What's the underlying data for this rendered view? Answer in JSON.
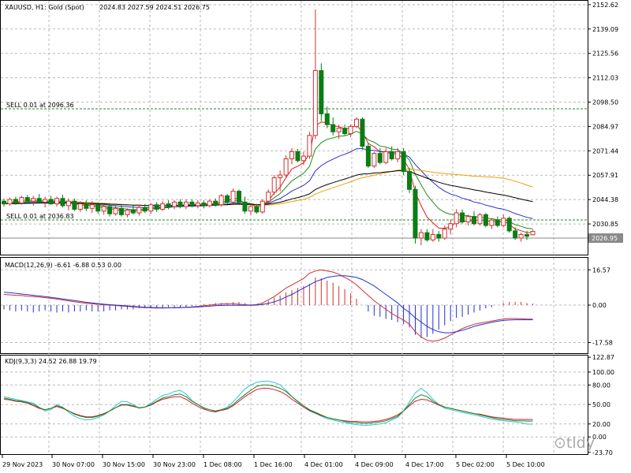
{
  "header": {
    "symbol": "XAUUSD, H1:  Gold (Spot)",
    "ohlc": "2024.83 2027.59 2024.51 2026.75"
  },
  "trade_lines": {
    "upper": "SELL 0.01 at 2096.36",
    "lower": "SELL 0.01 at 2036.83"
  },
  "current_price": "2026.95",
  "watermark": "⊙tldy",
  "colors": {
    "bull": "#d32f2f",
    "bear": "#0a7d14",
    "grid": "#b9b9b9",
    "ma_red": "#e02020",
    "ma_green": "#1d8f1d",
    "ma_blue": "#2a2fcc",
    "ma_orange": "#f0a000",
    "ma_black": "#000000",
    "macd_hist_pos": "#d32f2f",
    "macd_hist_neg": "#2030d0",
    "kdj_k": "#1a8a1a",
    "kdj_d": "#d81b3c",
    "kdj_j": "#2ec4d8",
    "trade_line": "#1f8a1f",
    "price_line": "#8a8a8a"
  },
  "chart_data": [
    {
      "type": "candlestick",
      "title": "XAUUSD, H1:  Gold (Spot)",
      "y_ticks": [
        "2152.62",
        "2139.09",
        "2125.56",
        "2112.03",
        "2098.50",
        "2084.97",
        "2071.44",
        "2057.91",
        "2044.38",
        "2030.85"
      ],
      "ylim": [
        2016,
        2153
      ],
      "candles": [
        [
          2043.5,
          2045.0,
          2040.5,
          2042.0
        ],
        [
          2042.0,
          2045.5,
          2041.0,
          2044.5
        ],
        [
          2044.5,
          2046.0,
          2041.5,
          2042.5
        ],
        [
          2042.5,
          2046.5,
          2041.5,
          2045.5
        ],
        [
          2045.5,
          2047.0,
          2042.0,
          2043.5
        ],
        [
          2043.5,
          2046.5,
          2041.0,
          2045.0
        ],
        [
          2045.0,
          2047.5,
          2042.5,
          2043.0
        ],
        [
          2043.0,
          2046.0,
          2040.0,
          2044.5
        ],
        [
          2044.5,
          2046.5,
          2041.5,
          2042.0
        ],
        [
          2042.0,
          2046.0,
          2040.5,
          2045.0
        ],
        [
          2045.0,
          2047.0,
          2040.0,
          2041.0
        ],
        [
          2041.0,
          2045.0,
          2038.5,
          2043.5
        ],
        [
          2043.5,
          2045.0,
          2038.0,
          2039.0
        ],
        [
          2039.0,
          2043.5,
          2037.5,
          2042.0
        ],
        [
          2042.0,
          2044.0,
          2038.0,
          2039.5
        ],
        [
          2039.5,
          2043.5,
          2037.0,
          2041.5
        ],
        [
          2041.5,
          2043.0,
          2036.5,
          2038.0
        ],
        [
          2038.0,
          2042.0,
          2036.0,
          2040.5
        ],
        [
          2040.5,
          2042.5,
          2035.0,
          2036.5
        ],
        [
          2036.5,
          2041.0,
          2035.5,
          2039.5
        ],
        [
          2039.5,
          2042.0,
          2035.0,
          2036.0
        ],
        [
          2036.0,
          2039.5,
          2034.5,
          2038.5
        ],
        [
          2038.5,
          2041.0,
          2036.0,
          2037.0
        ],
        [
          2037.0,
          2041.5,
          2035.5,
          2040.0
        ],
        [
          2040.0,
          2042.0,
          2037.0,
          2038.0
        ],
        [
          2038.0,
          2042.5,
          2036.5,
          2041.5
        ],
        [
          2041.5,
          2043.0,
          2037.5,
          2039.0
        ],
        [
          2039.0,
          2043.5,
          2038.0,
          2042.0
        ],
        [
          2042.0,
          2044.0,
          2039.0,
          2040.5
        ],
        [
          2040.5,
          2044.0,
          2039.0,
          2043.0
        ],
        [
          2043.0,
          2044.5,
          2039.5,
          2040.5
        ],
        [
          2040.5,
          2044.5,
          2039.0,
          2043.0
        ],
        [
          2043.0,
          2044.5,
          2040.0,
          2041.0
        ],
        [
          2041.0,
          2044.0,
          2039.5,
          2042.5
        ],
        [
          2042.5,
          2044.0,
          2039.5,
          2041.0
        ],
        [
          2041.0,
          2044.5,
          2040.0,
          2043.5
        ],
        [
          2043.5,
          2045.0,
          2040.5,
          2041.5
        ],
        [
          2041.5,
          2047.5,
          2040.5,
          2046.5
        ],
        [
          2046.5,
          2047.5,
          2042.0,
          2043.0
        ],
        [
          2043.0,
          2050.5,
          2042.0,
          2049.0
        ],
        [
          2049.0,
          2050.0,
          2042.0,
          2043.0
        ],
        [
          2043.0,
          2046.0,
          2036.5,
          2038.0
        ],
        [
          2038.0,
          2042.0,
          2036.0,
          2040.5
        ],
        [
          2040.5,
          2042.0,
          2036.5,
          2037.5
        ],
        [
          2037.5,
          2044.5,
          2036.5,
          2043.5
        ],
        [
          2043.5,
          2050.0,
          2042.5,
          2048.5
        ],
        [
          2048.5,
          2058.0,
          2047.0,
          2056.5
        ],
        [
          2056.5,
          2060.5,
          2049.0,
          2058.0
        ],
        [
          2058.0,
          2069.0,
          2056.5,
          2067.0
        ],
        [
          2067.0,
          2073.0,
          2064.0,
          2071.0
        ],
        [
          2071.0,
          2072.5,
          2065.0,
          2066.0
        ],
        [
          2066.0,
          2071.0,
          2063.5,
          2068.5
        ],
        [
          2068.5,
          2082.0,
          2067.0,
          2080.0
        ],
        [
          2080.0,
          2150.0,
          2078.0,
          2116.0
        ],
        [
          2116.0,
          2120.0,
          2088.0,
          2092.0
        ],
        [
          2092.0,
          2096.0,
          2084.0,
          2086.0
        ],
        [
          2086.0,
          2090.0,
          2080.0,
          2082.0
        ],
        [
          2082.0,
          2086.0,
          2078.0,
          2084.0
        ],
        [
          2084.0,
          2086.0,
          2080.0,
          2081.0
        ],
        [
          2081.0,
          2086.0,
          2079.0,
          2085.0
        ],
        [
          2085.0,
          2090.0,
          2084.0,
          2089.0
        ],
        [
          2089.0,
          2090.0,
          2072.0,
          2074.0
        ],
        [
          2074.0,
          2076.0,
          2062.0,
          2063.0
        ],
        [
          2063.0,
          2071.0,
          2062.0,
          2070.0
        ],
        [
          2070.0,
          2073.0,
          2064.0,
          2065.0
        ],
        [
          2065.0,
          2073.0,
          2064.0,
          2071.0
        ],
        [
          2071.0,
          2074.0,
          2066.0,
          2067.0
        ],
        [
          2067.0,
          2073.0,
          2065.0,
          2071.0
        ],
        [
          2071.0,
          2073.0,
          2058.0,
          2060.0
        ],
        [
          2060.0,
          2062.0,
          2048.0,
          2050.0
        ],
        [
          2050.0,
          2052.0,
          2020.0,
          2023.0
        ],
        [
          2023.0,
          2028.0,
          2019.0,
          2026.0
        ],
        [
          2026.0,
          2028.0,
          2021.0,
          2022.0
        ],
        [
          2022.0,
          2028.0,
          2021.0,
          2025.0
        ],
        [
          2025.0,
          2027.0,
          2021.0,
          2023.0
        ],
        [
          2023.0,
          2030.0,
          2022.0,
          2028.0
        ],
        [
          2028.0,
          2033.0,
          2025.0,
          2031.0
        ],
        [
          2031.0,
          2039.0,
          2029.0,
          2037.0
        ],
        [
          2037.0,
          2039.0,
          2031.0,
          2032.0
        ],
        [
          2032.0,
          2036.0,
          2030.0,
          2035.0
        ],
        [
          2035.0,
          2038.0,
          2030.0,
          2031.0
        ],
        [
          2031.0,
          2037.0,
          2030.0,
          2036.0
        ],
        [
          2036.0,
          2037.0,
          2029.0,
          2030.0
        ],
        [
          2030.0,
          2034.0,
          2028.0,
          2033.0
        ],
        [
          2033.0,
          2035.0,
          2029.0,
          2030.0
        ],
        [
          2030.0,
          2036.0,
          2029.0,
          2034.0
        ],
        [
          2034.0,
          2035.0,
          2026.0,
          2027.0
        ],
        [
          2027.0,
          2029.0,
          2022.0,
          2023.0
        ],
        [
          2023.0,
          2026.0,
          2021.0,
          2025.0
        ],
        [
          2025.0,
          2027.0,
          2022.0,
          2024.0
        ],
        [
          2024.83,
          2027.59,
          2024.51,
          2026.75
        ]
      ]
    },
    {
      "type": "line",
      "title": "MACD(12,26,9) -6.61 -6.88 0.53 0.00",
      "y_ticks": [
        "16.57",
        "0.00",
        "-17.58"
      ],
      "ylim": [
        -20,
        20
      ],
      "histogram": [
        -2,
        -2.5,
        -3,
        -2.5,
        -3,
        -3.5,
        -3,
        -2.5,
        -3,
        -3.5,
        -3,
        -3.5,
        -3,
        -3,
        -2.5,
        -3,
        -3,
        -3,
        -2.5,
        -2.5,
        -2,
        -2,
        -2,
        -1.5,
        -1.5,
        -1.5,
        -1.5,
        -1.5,
        -1,
        -1,
        -1,
        -1,
        -0.5,
        0,
        0.5,
        0.5,
        1,
        1,
        1,
        1.5,
        1.5,
        1,
        0.5,
        0.5,
        1,
        2,
        3.5,
        4.5,
        6,
        7,
        8,
        9,
        10,
        13,
        12.5,
        11.5,
        10.5,
        9,
        7.5,
        5.5,
        3,
        0,
        -3,
        -5,
        -5.5,
        -6.5,
        -7,
        -8,
        -9,
        -10.5,
        -14,
        -15.5,
        -15,
        -13.5,
        -11.5,
        -9.5,
        -7.5,
        -6,
        -5.5,
        -4.5,
        -3.5,
        -2.5,
        -1.5,
        -1,
        0,
        1,
        1.5,
        1.5,
        1.5,
        1,
        0.7
      ],
      "macd": [
        5,
        4.8,
        4.6,
        4.5,
        4.2,
        4,
        3.8,
        3.5,
        3.2,
        2.8,
        2.4,
        2,
        1.6,
        1.2,
        0.9,
        0.6,
        0.4,
        0.2,
        0,
        -0.2,
        -0.4,
        -0.6,
        -0.8,
        -1,
        -1.2,
        -1.3,
        -1.4,
        -1.4,
        -1.3,
        -1.2,
        -1.1,
        -1,
        -0.9,
        -0.6,
        -0.3,
        0,
        0.3,
        0.5,
        0.6,
        0.6,
        0.4,
        0.2,
        0,
        0.3,
        1,
        2.5,
        4,
        6,
        8,
        9.5,
        11,
        12.5,
        15,
        16,
        16.5,
        16,
        15.5,
        14.5,
        13,
        11.5,
        9.5,
        7,
        4.5,
        2,
        0,
        -2,
        -4,
        -5.5,
        -7,
        -9,
        -12.5,
        -15,
        -16.5,
        -17,
        -16.5,
        -15.5,
        -14,
        -12.5,
        -11,
        -10,
        -9,
        -8.5,
        -8,
        -7.5,
        -7,
        -6.5,
        -6.3,
        -6.3,
        -6.4,
        -6.6,
        -6.61
      ],
      "signal": [
        6,
        5.8,
        5.5,
        5.2,
        4.9,
        4.6,
        4.3,
        4,
        3.6,
        3.3,
        2.9,
        2.5,
        2.1,
        1.7,
        1.3,
        1,
        0.7,
        0.4,
        0.2,
        0,
        -0.2,
        -0.4,
        -0.6,
        -0.8,
        -1,
        -1.1,
        -1.2,
        -1.3,
        -1.3,
        -1.3,
        -1.2,
        -1.1,
        -1,
        -0.9,
        -0.7,
        -0.5,
        -0.3,
        -0.2,
        -0.1,
        -0.1,
        -0.1,
        -0.1,
        -0.1,
        0,
        0.3,
        0.8,
        1.5,
        2.5,
        3.8,
        5,
        6.5,
        8,
        9.5,
        11,
        12,
        13,
        13.5,
        13.8,
        13.8,
        13.5,
        13,
        12,
        10.5,
        9,
        7,
        5,
        3,
        1,
        -1.5,
        -3.5,
        -6,
        -8,
        -10,
        -11.5,
        -12.5,
        -13,
        -13,
        -12.5,
        -11.8,
        -11,
        -10,
        -9.3,
        -8.7,
        -8.1,
        -7.6,
        -7.2,
        -7,
        -6.9,
        -6.9,
        -6.9,
        -6.88
      ]
    },
    {
      "type": "line",
      "title": "KDJ(9,3,3) 24.52 26.88 19.79",
      "y_ticks": [
        "122.87",
        "100.00",
        "80.00",
        "50.00",
        "20.00",
        "0.00",
        "-23.70"
      ],
      "ylim": [
        -24,
        123
      ],
      "k": [
        60,
        58,
        56,
        55,
        53,
        50,
        45,
        42,
        44,
        48,
        45,
        40,
        35,
        32,
        30,
        30,
        32,
        35,
        40,
        45,
        50,
        50,
        48,
        45,
        46,
        50,
        55,
        60,
        62,
        65,
        66,
        62,
        55,
        50,
        45,
        42,
        40,
        42,
        44,
        50,
        58,
        65,
        72,
        78,
        80,
        80,
        78,
        75,
        70,
        62,
        55,
        48,
        42,
        38,
        34,
        30,
        28,
        26,
        24,
        22,
        22,
        21,
        21,
        22,
        23,
        25,
        28,
        32,
        40,
        50,
        60,
        65,
        62,
        55,
        50,
        46,
        44,
        42,
        40,
        38,
        36,
        34,
        32,
        30,
        28,
        27,
        26,
        25,
        25,
        24.52,
        24.52
      ],
      "d": [
        58,
        57,
        55,
        54,
        52,
        48,
        44,
        42,
        44,
        47,
        44,
        40,
        36,
        33,
        31,
        31,
        33,
        36,
        40,
        45,
        49,
        49,
        47,
        45,
        46,
        49,
        54,
        58,
        60,
        62,
        62,
        58,
        52,
        47,
        43,
        40,
        39,
        41,
        43,
        48,
        55,
        62,
        68,
        73,
        75,
        75,
        73,
        70,
        65,
        58,
        52,
        46,
        41,
        37,
        33,
        30,
        28,
        26,
        25,
        24,
        24,
        23,
        23,
        24,
        25,
        27,
        30,
        34,
        40,
        48,
        55,
        58,
        57,
        53,
        49,
        46,
        44,
        42,
        40,
        38,
        36,
        35,
        33,
        31,
        30,
        29,
        28,
        27,
        27,
        26.88,
        26.88
      ],
      "j": [
        62,
        60,
        58,
        56,
        54,
        52,
        46,
        40,
        42,
        50,
        46,
        38,
        32,
        28,
        26,
        27,
        30,
        34,
        40,
        48,
        55,
        54,
        50,
        44,
        46,
        52,
        58,
        64,
        66,
        70,
        72,
        66,
        56,
        50,
        44,
        40,
        38,
        42,
        46,
        54,
        64,
        74,
        80,
        84,
        86,
        86,
        84,
        80,
        72,
        62,
        54,
        46,
        40,
        36,
        32,
        28,
        26,
        24,
        22,
        20,
        19,
        18,
        18,
        19,
        20,
        22,
        26,
        30,
        40,
        54,
        68,
        75,
        68,
        58,
        50,
        44,
        42,
        40,
        38,
        36,
        34,
        32,
        30,
        28,
        26,
        25,
        24,
        23,
        22,
        19.79,
        19.79
      ]
    }
  ],
  "x_axis": [
    "29 Nov 2023",
    "30 Nov 07:00",
    "30 Nov 15:00",
    "30 Nov 23:00",
    "1 Dec 08:00",
    "1 Dec 16:00",
    "4 Dec 01:00",
    "4 Dec 09:00",
    "4 Dec 17:00",
    "5 Dec 02:00",
    "5 Dec 10:00"
  ]
}
